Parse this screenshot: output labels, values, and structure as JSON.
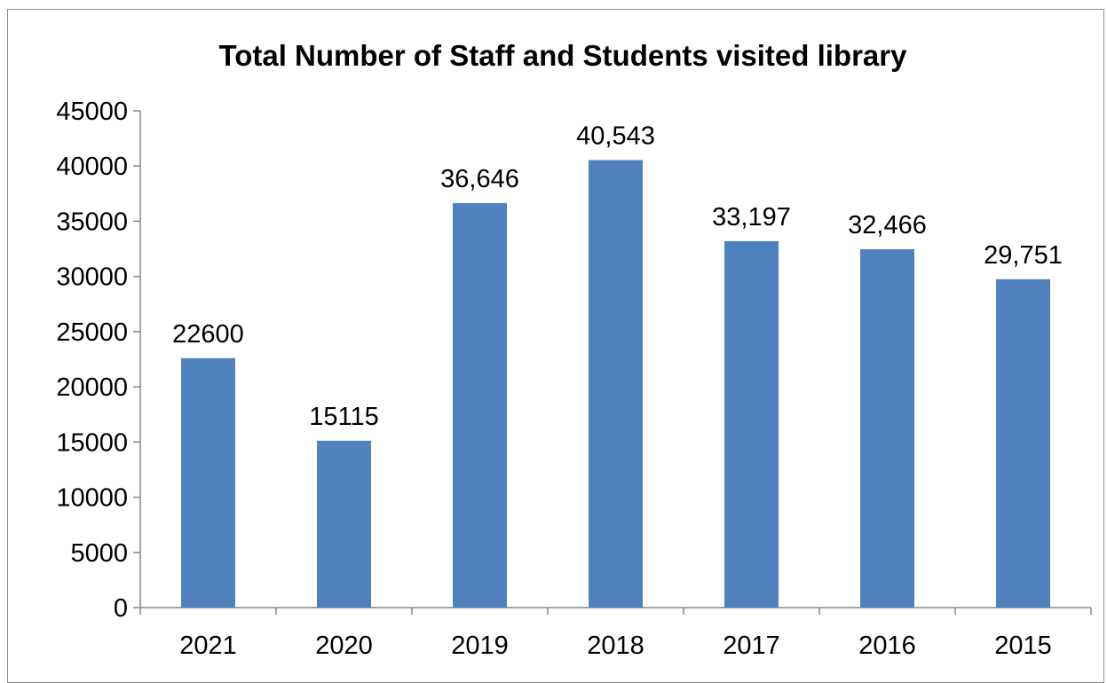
{
  "chart_data": {
    "type": "bar",
    "title": "Total Number of Staff and Students visited library",
    "xlabel": "",
    "ylabel": "",
    "categories": [
      "2021",
      "2020",
      "2019",
      "2018",
      "2017",
      "2016",
      "2015"
    ],
    "values": [
      22600,
      15115,
      36646,
      40543,
      33197,
      32466,
      29751
    ],
    "data_labels": [
      "22600",
      "15115",
      "36,646",
      "40,543",
      "33,197",
      "32,466",
      "29,751"
    ],
    "ylim": [
      0,
      45000
    ],
    "y_ticks": [
      0,
      5000,
      10000,
      15000,
      20000,
      25000,
      30000,
      35000,
      40000,
      45000
    ],
    "y_tick_labels": [
      "0",
      "5000",
      "10000",
      "15000",
      "20000",
      "25000",
      "30000",
      "35000",
      "40000",
      "45000"
    ],
    "grid": false,
    "legend": "none",
    "bar_color": "#4f81bd",
    "axis_color": "#868686"
  }
}
